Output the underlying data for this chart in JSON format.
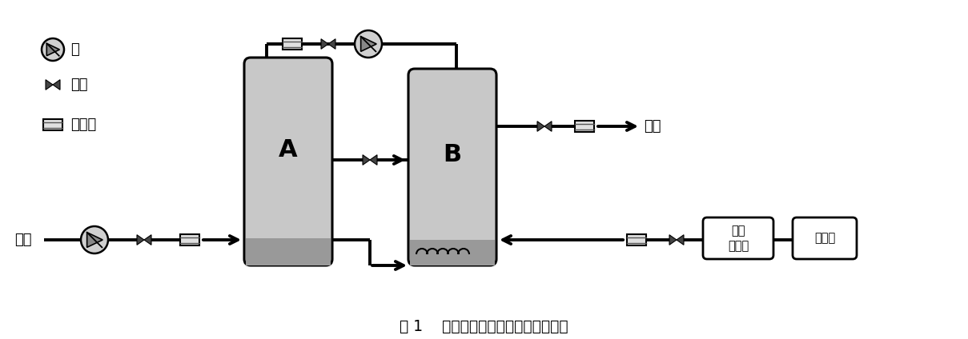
{
  "title": "图 1    分体式流化床催化臭氧装置流程",
  "bg_color": "#ffffff",
  "line_color": "#000000",
  "tank_fill": "#c8c8c8",
  "tank_stroke": "#000000",
  "box_fill": "#ffffff",
  "box_stroke": "#000000",
  "legend_items": [
    "泵",
    "阀门",
    "流量计"
  ],
  "tank_A_label": "A",
  "tank_B_label": "B",
  "label_jinshui": "进水",
  "label_chushui": "出水",
  "label_oz_gen": "臭氧\n发生器",
  "label_oxy": "氧气瓶"
}
